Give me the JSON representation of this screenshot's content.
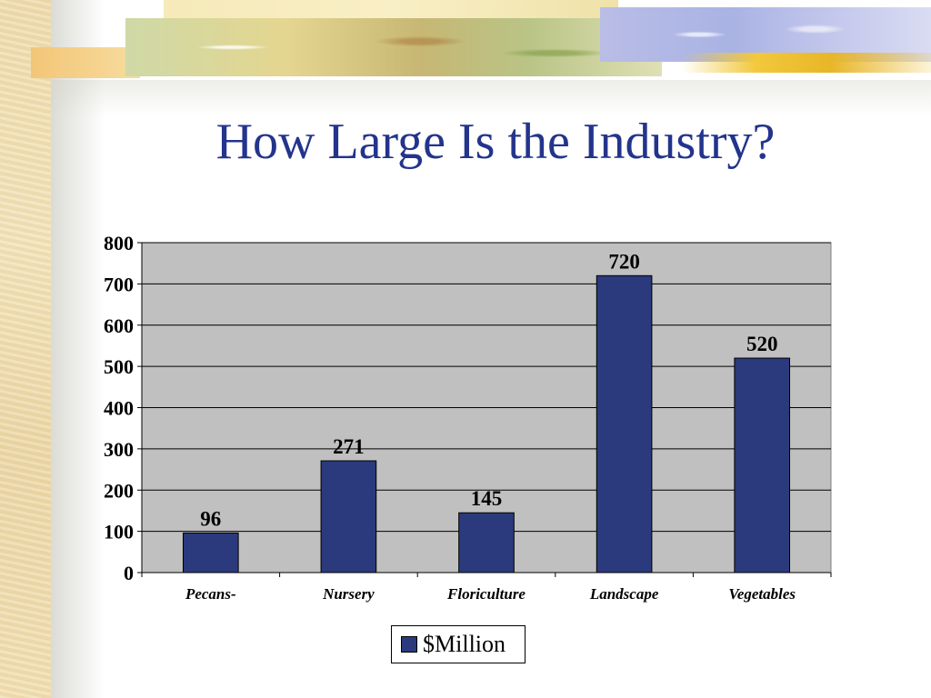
{
  "slide": {
    "title": "How Large Is the Industry?"
  },
  "colors": {
    "bar": "#2b3a7c",
    "plot_background": "#c0c0c0",
    "title": "#23348c"
  },
  "chart_data": {
    "type": "bar",
    "title": "",
    "xlabel": "",
    "ylabel": "",
    "categories": [
      "Pecans-",
      "Nursery",
      "Floriculture",
      "Landscape",
      "Vegetables"
    ],
    "series": [
      {
        "name": "$Million",
        "values": [
          96,
          271,
          145,
          720,
          520
        ]
      }
    ],
    "data_labels": [
      "96",
      "271",
      "145",
      "720",
      "520"
    ],
    "ylim": [
      0,
      800
    ],
    "yticks": [
      0,
      100,
      200,
      300,
      400,
      500,
      600,
      700,
      800
    ],
    "grid": true,
    "legend": "bottom-center"
  }
}
